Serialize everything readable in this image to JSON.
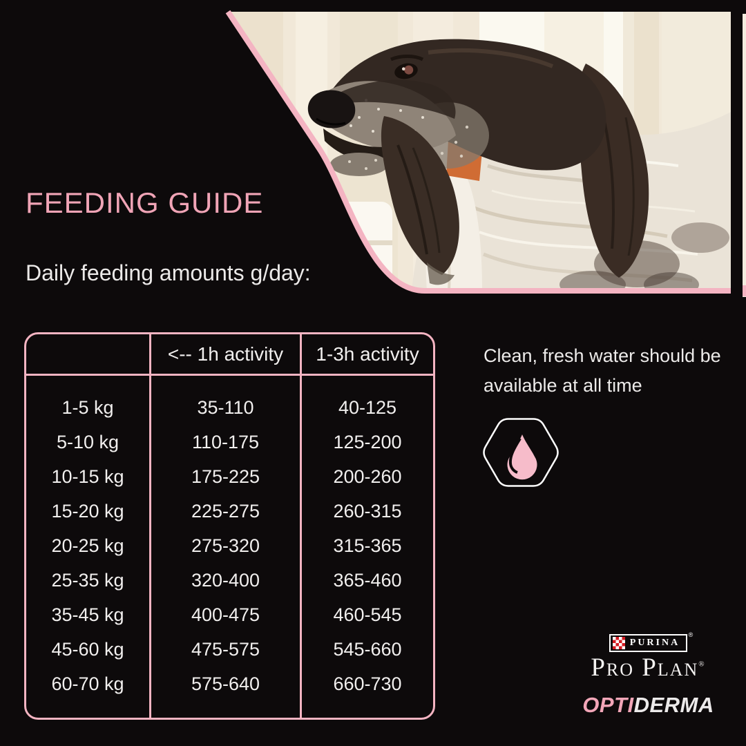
{
  "page": {
    "title": "FEEDING GUIDE",
    "subtitle": "Daily feeding amounts g/day:"
  },
  "table": {
    "headers": [
      "",
      "<-- 1h activity",
      "1-3h activity"
    ],
    "rows": [
      {
        "weight": "1-5 kg",
        "low": "35-110",
        "high": "40-125"
      },
      {
        "weight": "5-10 kg",
        "low": "110-175",
        "high": "125-200"
      },
      {
        "weight": "10-15 kg",
        "low": "175-225",
        "high": "200-260"
      },
      {
        "weight": "15-20 kg",
        "low": "225-275",
        "high": "260-315"
      },
      {
        "weight": "20-25 kg",
        "low": "275-320",
        "high": "315-365"
      },
      {
        "weight": "25-35 kg",
        "low": "320-400",
        "high": "365-460"
      },
      {
        "weight": "35-45 kg",
        "low": "400-475",
        "high": "460-545"
      },
      {
        "weight": "45-60 kg",
        "low": "475-575",
        "high": "545-660"
      },
      {
        "weight": "60-70 kg",
        "low": "575-640",
        "high": "660-730"
      }
    ]
  },
  "water": {
    "text": "Clean, fresh water should be available at all time",
    "icon": "water-drop-icon"
  },
  "brand": {
    "purina": "PURINA",
    "pro_plan": "Pro Plan",
    "reg": "®",
    "opti": "OPTI",
    "derma": "DERMA"
  },
  "colors": {
    "background": "#0d0a0b",
    "accent_pink": "#f0a4b6",
    "table_border_pink": "#f4b4c2",
    "droplet_pink": "#f6bcca",
    "purina_red": "#d31b22",
    "text_light": "#f1efee"
  }
}
